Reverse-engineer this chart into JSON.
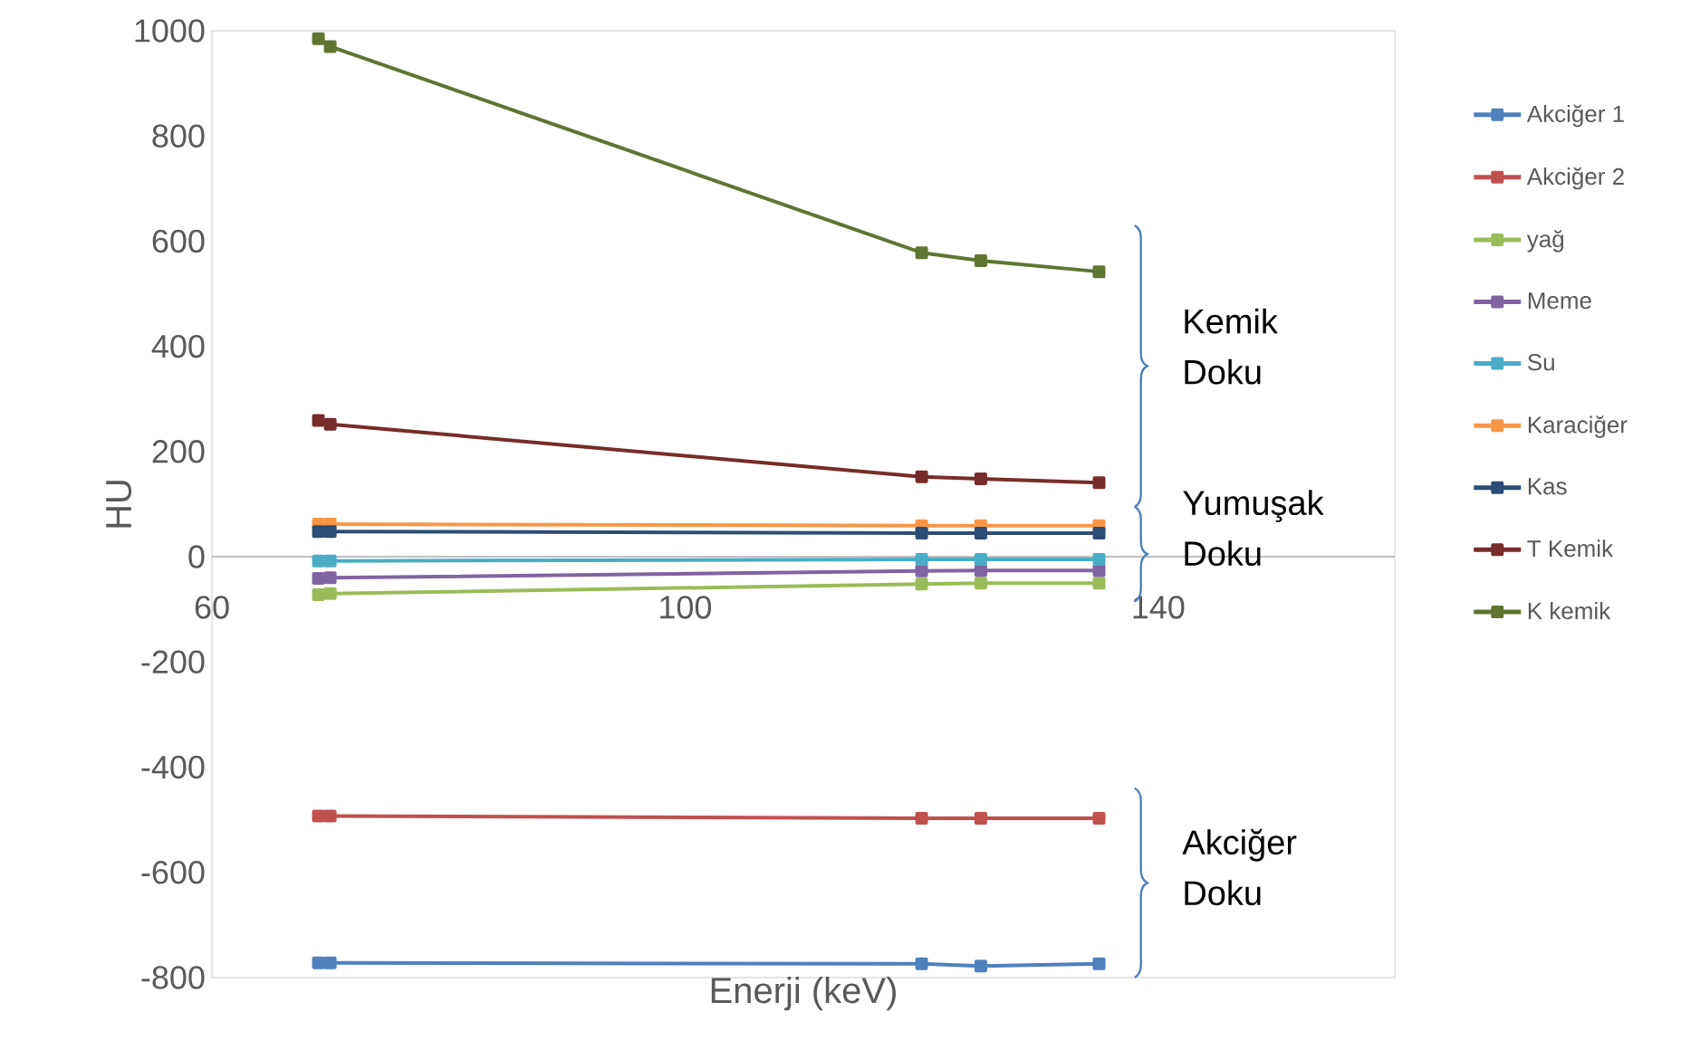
{
  "chart_data": {
    "type": "line",
    "xlabel": "Enerji (keV)",
    "ylabel": "HU",
    "x": [
      69,
      70,
      120,
      125,
      135
    ],
    "xlim": [
      60,
      160
    ],
    "xticks": [
      60,
      100,
      140
    ],
    "ylim": [
      -800,
      1000
    ],
    "yticks": [
      -800,
      -600,
      -400,
      -200,
      0,
      200,
      400,
      600,
      800,
      1000
    ],
    "legend": "right",
    "marker": "square",
    "line_style": "solid",
    "series": [
      {
        "name": "Akciğer 1",
        "color": "#4f81bd",
        "values": [
          -772,
          -772,
          -774,
          -778,
          -774
        ]
      },
      {
        "name": "Akciğer 2",
        "color": "#c0504d",
        "values": [
          -493,
          -493,
          -497,
          -497,
          -497
        ]
      },
      {
        "name": "yağ",
        "color": "#9bbb59",
        "values": [
          -72,
          -70,
          -52,
          -50,
          -50
        ]
      },
      {
        "name": "Meme",
        "color": "#8064a2",
        "values": [
          -41,
          -40,
          -27,
          -26,
          -26
        ]
      },
      {
        "name": "Su",
        "color": "#4bacc6",
        "values": [
          -8,
          -8,
          -5,
          -5,
          -5
        ]
      },
      {
        "name": "Karaciğer",
        "color": "#f79646",
        "values": [
          62,
          62,
          59,
          59,
          59
        ]
      },
      {
        "name": "Kas",
        "color": "#2c4d75",
        "values": [
          48,
          48,
          45,
          45,
          45
        ]
      },
      {
        "name": "T Kemik",
        "color": "#772c2a",
        "values": [
          259,
          252,
          152,
          148,
          141
        ]
      },
      {
        "name": "K kemik",
        "color": "#5f7530",
        "values": [
          985,
          970,
          578,
          563,
          542
        ]
      }
    ],
    "annotations": [
      "Kemik Doku",
      "Yumuşak Doku",
      "Akciğer Doku"
    ]
  }
}
